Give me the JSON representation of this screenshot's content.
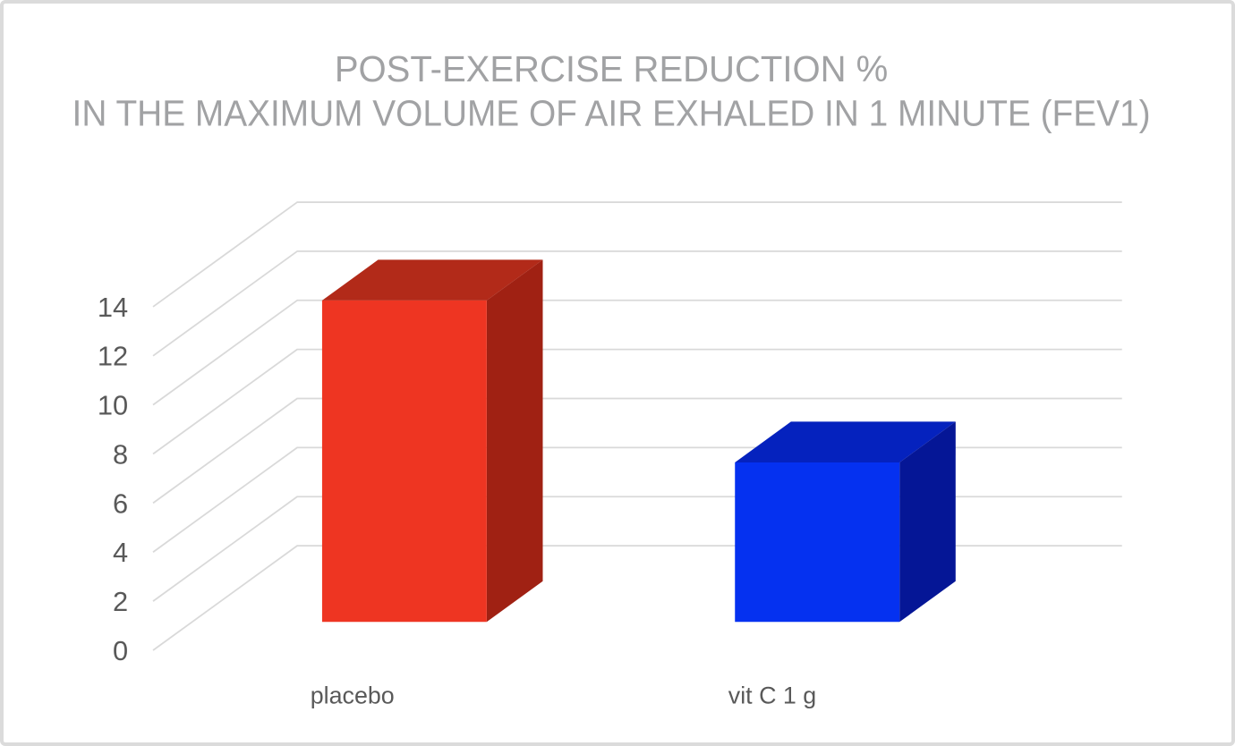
{
  "chart_data": {
    "type": "bar",
    "projection": "3d",
    "title": "POST-EXERCISE REDUCTION % IN THE MAXIMUM VOLUME OF AIR EXHALED IN 1 MINUTE (FEV1)",
    "title_lines": [
      "POST-EXERCISE REDUCTION %",
      "IN THE MAXIMUM VOLUME OF AIR EXHALED IN 1 MINUTE (FEV1)"
    ],
    "categories": [
      "placebo",
      "vit C 1 g"
    ],
    "values": [
      13.1,
      6.5
    ],
    "xlabel": "",
    "ylabel": "",
    "ylim": [
      0,
      14
    ],
    "yticks": [
      0,
      2,
      4,
      6,
      8,
      10,
      12,
      14
    ],
    "grid": true,
    "legend": false,
    "colors": {
      "bars": [
        {
          "front": "#ee3522",
          "top": "#b22a19",
          "side": "#a02113"
        },
        {
          "front": "#0531f0",
          "top": "#0522be",
          "side": "#051696"
        }
      ],
      "gridline": "#d9d9d9",
      "axis_text": "#595959",
      "title_text": "#a1a2a4",
      "frame_border": "#dbdbdb",
      "background": "#ffffff"
    }
  }
}
